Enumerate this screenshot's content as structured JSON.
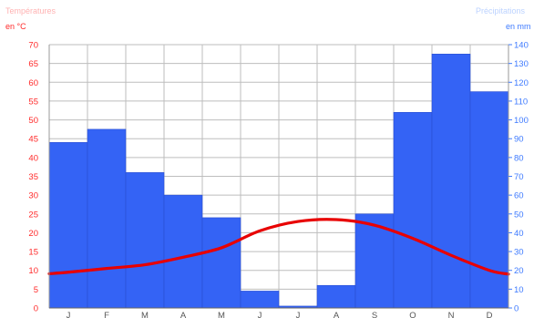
{
  "header": {
    "left_title": "Températures",
    "left_unit": "en °C",
    "right_title": "Précipitations",
    "right_unit": "en mm"
  },
  "colors": {
    "temp_line": "#e80000",
    "temp_axis": "#ff2a2a",
    "precip_bar": "#3463f5",
    "precip_axis": "#3f7bff",
    "grid": "#bdbdbd"
  },
  "chart_data": {
    "type": "bar",
    "title": "",
    "categories": [
      "J",
      "F",
      "M",
      "A",
      "M",
      "J",
      "J",
      "A",
      "S",
      "O",
      "N",
      "D"
    ],
    "series": [
      {
        "name": "Précipitations",
        "chart_type": "bar",
        "axis": "right",
        "values": [
          88,
          95,
          72,
          60,
          48,
          9,
          1,
          12,
          50,
          104,
          135,
          115
        ]
      },
      {
        "name": "Températures",
        "chart_type": "line",
        "axis": "left",
        "values": [
          9.5,
          10.5,
          11.5,
          13.5,
          16,
          20.5,
          23,
          23.5,
          22,
          18.5,
          14,
          10
        ]
      }
    ],
    "left_axis": {
      "label": "Températures",
      "unit": "en °C",
      "ylim": [
        0,
        70
      ],
      "ticks": [
        0,
        5,
        10,
        15,
        20,
        25,
        30,
        35,
        40,
        45,
        50,
        55,
        60,
        65,
        70
      ]
    },
    "right_axis": {
      "label": "Précipitations",
      "unit": "en mm",
      "ylim": [
        0,
        140
      ],
      "ticks": [
        0,
        10,
        20,
        30,
        40,
        50,
        60,
        70,
        80,
        90,
        100,
        110,
        120,
        130,
        140
      ]
    },
    "grid": true
  }
}
